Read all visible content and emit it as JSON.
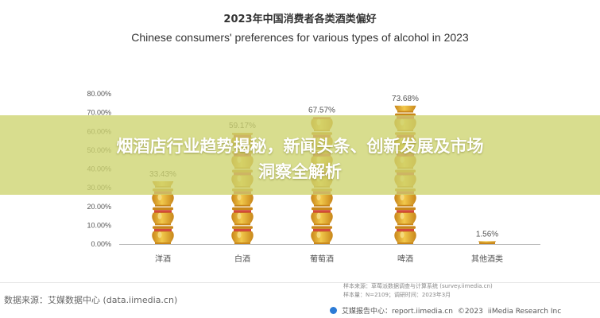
{
  "chart_data": {
    "type": "bar",
    "title": "2023年中国消费者各类酒类偏好",
    "subtitle": "Chinese consumers' preferences for various types of alcohol in 2023",
    "categories": [
      "洋酒",
      "白酒",
      "葡萄酒",
      "啤酒",
      "其他酒类"
    ],
    "values": [
      33.43,
      59.17,
      67.57,
      73.68,
      1.56
    ],
    "value_labels": [
      "33.43%",
      "59.17%",
      "67.57%",
      "73.68%",
      "1.56%"
    ],
    "ylim": [
      0,
      80
    ],
    "y_ticks": [
      "0.00%",
      "10.00%",
      "20.00%",
      "30.00%",
      "40.00%",
      "50.00%",
      "60.00%",
      "70.00%",
      "80.00%"
    ],
    "grid": false,
    "colors": {
      "body": "#e9b52a",
      "body_dark": "#c9871a",
      "top_band": "#d34a3b",
      "highlight": "#f6e08a",
      "text": "#555555"
    }
  },
  "banner": {
    "line1": "烟酒店行业趋势揭秘，新闻头条、创新发展及市场",
    "line2": "洞察全解析"
  },
  "source": {
    "left": "数据来源：艾媒数据中心 (data.iimedia.cn)",
    "sample_source": "样本来源：草莓派数据调查与计算系统 (survey.iimedia.cn)",
    "sample_info": "样本量：N=2109；调研时间：2023年3月",
    "footer": [
      "艾媒报告中心：report.iimedia.cn",
      "©2023",
      "iiMedia Research Inc"
    ]
  },
  "colors": {
    "banner": "#cdd46e",
    "logo": "#2b7bd6"
  }
}
